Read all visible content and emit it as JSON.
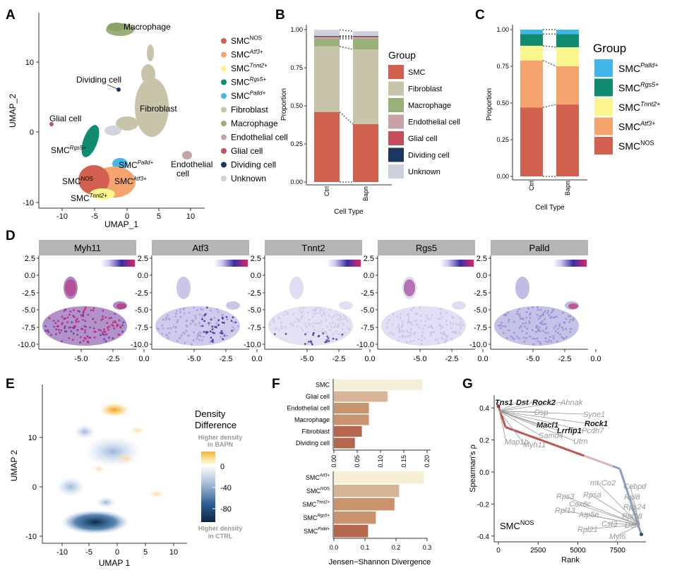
{
  "panel_letters": {
    "A": "A",
    "B": "B",
    "C": "C",
    "D": "D",
    "E": "E",
    "F": "F",
    "G": "G"
  },
  "colors": {
    "SMC_NOS": "#d2604f",
    "SMC_Atf3": "#f4a46c",
    "SMC_Tnnt2": "#fbf58e",
    "SMC_Rgs5": "#0f8c6f",
    "SMC_Palld": "#44b5e8",
    "Fibroblast": "#c7c4a9",
    "Macrophage": "#9ab079",
    "Endothelial": "#c7a3a7",
    "Glial": "#c44e5c",
    "Dividing": "#1b365f",
    "Unknown": "#cdd1dc",
    "gradient": [
      "#ffffff",
      "#c8c6ea",
      "#7870c9",
      "#3a2d9e",
      "#8a2a8e",
      "#e0205d"
    ],
    "gray_strip": "#b5b5b5"
  },
  "panelA": {
    "xlabel": "UMAP_1",
    "ylabel": "UMAP_2",
    "xticks": [
      "-10",
      "-5",
      "0",
      "5",
      "10"
    ],
    "yticks": [
      "10",
      "0",
      "-10"
    ],
    "cluster_labels": {
      "macrophage": "Macrophage",
      "dividing": "Dividing cell",
      "glial": "Glial cell",
      "fibroblast": "Fibroblast",
      "endothelial_1": "Endothelial",
      "endothelial_2": "cell",
      "rgs5": "SMC",
      "rgs5_sup": "Rgs5+",
      "palld": "SMC",
      "palld_sup": "Palld+",
      "nos": "SMC",
      "nos_sup": "NOS",
      "atf3": "SMC",
      "atf3_sup": "Atf3+",
      "tnnt2": "SMC",
      "tnnt2_sup": "Tnnt2+"
    },
    "legend": [
      {
        "base": "SMC",
        "sup": "NOS",
        "italic": false,
        "color": "#d2604f"
      },
      {
        "base": "SMC",
        "sup": "Atf3+",
        "italic": true,
        "color": "#f4a46c"
      },
      {
        "base": "SMC",
        "sup": "Tnnt2+",
        "italic": true,
        "color": "#fbf58e"
      },
      {
        "base": "SMC",
        "sup": "Rgs5+",
        "italic": true,
        "color": "#0f8c6f"
      },
      {
        "base": "SMC",
        "sup": "Palld+",
        "italic": true,
        "color": "#44b5e8"
      },
      {
        "base": "Fibroblast",
        "sup": "",
        "italic": false,
        "color": "#c7c4a9"
      },
      {
        "base": "Macrophage",
        "sup": "",
        "italic": false,
        "color": "#9ab079"
      },
      {
        "base": "Endothelial cell",
        "sup": "",
        "italic": false,
        "color": "#c7a3a7"
      },
      {
        "base": "Glial cell",
        "sup": "",
        "italic": false,
        "color": "#c44e5c"
      },
      {
        "base": "Dividing cell",
        "sup": "",
        "italic": false,
        "color": "#1b365f"
      },
      {
        "base": "Unknown",
        "sup": "",
        "italic": false,
        "color": "#cdd1dc"
      }
    ]
  },
  "panelD": {
    "genes": [
      "Myh11",
      "Atf3",
      "Tnnt2",
      "Rgs5",
      "Palld"
    ],
    "xticks": [
      "-5.0",
      "-2.5",
      "0.0"
    ],
    "yticks": [
      "2.5",
      "0.0",
      "-2.5",
      "-5.0",
      "-7.5",
      "-10.0"
    ]
  },
  "panelE": {
    "xlabel": "UMAP 1",
    "ylabel": "UMAP 2",
    "xticks": [
      "-10",
      "-5",
      "0",
      "5",
      "10"
    ],
    "yticks": [
      "10",
      "0",
      "-10"
    ],
    "legend_title_1": "Density",
    "legend_title_2": "Difference",
    "legend_top_1": "Higher density",
    "legend_top_2": "in BAPN",
    "legend_bottom_1": "Higher density",
    "legend_bottom_2": "in CTRL",
    "legend_ticks": [
      "0",
      "-40",
      "-80"
    ]
  },
  "panelG": {
    "ylabel": "Spearman's ρ",
    "xlabel": "Rank",
    "label": "SMC",
    "label_sup": "NOS",
    "xticks": [
      "0",
      "2500",
      "5000",
      "7500"
    ],
    "yticks": [
      "0.4",
      "0.2",
      "0.0",
      "-0.2",
      "-0.4"
    ],
    "top_genes": [
      {
        "name": "Tns1",
        "bold": true
      },
      {
        "name": "Dst",
        "bold": true
      },
      {
        "name": "Rock2",
        "bold": true
      },
      {
        "name": "Ahnak",
        "bold": false
      },
      {
        "name": "Dsp",
        "bold": false
      },
      {
        "name": "Syne1",
        "bold": false
      },
      {
        "name": "Macf1",
        "bold": true
      },
      {
        "name": "Rock1",
        "bold": true
      },
      {
        "name": "Pcdh7",
        "bold": false
      },
      {
        "name": "Lrrfip1",
        "bold": true
      },
      {
        "name": "Samd4",
        "bold": false
      },
      {
        "name": "Map1b",
        "bold": false
      },
      {
        "name": "Myh11",
        "bold": false
      },
      {
        "name": "Utrn",
        "bold": false
      }
    ],
    "bottom_genes": [
      {
        "name": "mt-Co2"
      },
      {
        "name": "Rps3"
      },
      {
        "name": "Rpsa"
      },
      {
        "name": "Cox6c"
      },
      {
        "name": "Rpl13"
      },
      {
        "name": "Atp5e"
      },
      {
        "name": "Rpl21"
      },
      {
        "name": "Cst3"
      },
      {
        "name": "Cebpd"
      },
      {
        "name": "Rpl8"
      },
      {
        "name": "Rps24"
      },
      {
        "name": "Rpl18"
      },
      {
        "name": "Dcn"
      },
      {
        "name": "Myl6"
      }
    ]
  },
  "chart_data": [
    {
      "panel": "B",
      "type": "bar",
      "stacked": true,
      "categories": [
        "Ctrl",
        "Bapn"
      ],
      "xlabel": "Cell Type",
      "ylabel": "Proportion",
      "ylim": [
        0,
        1
      ],
      "yticks": [
        "0.00",
        "0.25",
        "0.50",
        "0.75",
        "1.00"
      ],
      "legend_title": "Group",
      "series": [
        {
          "name": "SMC",
          "color": "#d2604f",
          "values": [
            0.46,
            0.38
          ]
        },
        {
          "name": "Fibroblast",
          "color": "#c7c4a9",
          "values": [
            0.43,
            0.49
          ]
        },
        {
          "name": "Macrophage",
          "color": "#9ab079",
          "values": [
            0.05,
            0.07
          ]
        },
        {
          "name": "Endothelial cell",
          "color": "#c7a3a7",
          "values": [
            0.01,
            0.01
          ]
        },
        {
          "name": "Glial cell",
          "color": "#c44e5c",
          "values": [
            0.005,
            0.005
          ]
        },
        {
          "name": "Dividing cell",
          "color": "#1b365f",
          "values": [
            0.004,
            0.004
          ]
        },
        {
          "name": "Unknown",
          "color": "#cdd1dc",
          "values": [
            0.04,
            0.03
          ]
        }
      ]
    },
    {
      "panel": "C",
      "type": "bar",
      "stacked": true,
      "categories": [
        "Ctrl",
        "Bapn"
      ],
      "xlabel": "Cell Type",
      "ylabel": "Proportion",
      "ylim": [
        0,
        1
      ],
      "yticks": [
        "0.00",
        "0.25",
        "0.50",
        "0.75",
        "1.00"
      ],
      "legend_title": "Group",
      "series": [
        {
          "name": "SMC",
          "sup": "NOS",
          "color": "#d2604f",
          "values": [
            0.47,
            0.49
          ]
        },
        {
          "name": "SMC",
          "sup": "Atf3+",
          "color": "#f4a46c",
          "values": [
            0.32,
            0.26
          ]
        },
        {
          "name": "SMC",
          "sup": "Tnnt2+",
          "color": "#fbf58e",
          "values": [
            0.1,
            0.13
          ]
        },
        {
          "name": "SMC",
          "sup": "Rgs5+",
          "color": "#0f8c6f",
          "values": [
            0.08,
            0.09
          ]
        },
        {
          "name": "SMC",
          "sup": "Palld+",
          "color": "#44b5e8",
          "values": [
            0.03,
            0.03
          ]
        }
      ],
      "legend_order": [
        4,
        3,
        2,
        1,
        0
      ]
    },
    {
      "panel": "F-top",
      "type": "bar",
      "orientation": "horizontal",
      "categories": [
        "SMC",
        "Glial cell",
        "Endothelial cell",
        "Macrophage",
        "Fibroblast",
        "Dividing cell"
      ],
      "values": [
        0.19,
        0.115,
        0.075,
        0.075,
        0.06,
        0.045
      ],
      "xticks": [
        "0.00",
        "0.05",
        "0.10",
        "0.15",
        "0.20"
      ],
      "xlim": [
        0,
        0.2
      ]
    },
    {
      "panel": "F-bottom",
      "type": "bar",
      "orientation": "horizontal",
      "categories": [
        "SMC",
        "SMC",
        "SMC",
        "SMC",
        "SMC"
      ],
      "category_sups": [
        "Atf3+",
        "NOS",
        "Tnnt2+",
        "Rgs5+",
        "Palld+"
      ],
      "values": [
        0.29,
        0.21,
        0.195,
        0.135,
        0.11
      ],
      "xticks": [
        "0.0",
        "0.1",
        "0.2",
        "0.3"
      ],
      "xlim": [
        0,
        0.3
      ],
      "xlabel": "Jensen−Shannon Divergence"
    }
  ]
}
